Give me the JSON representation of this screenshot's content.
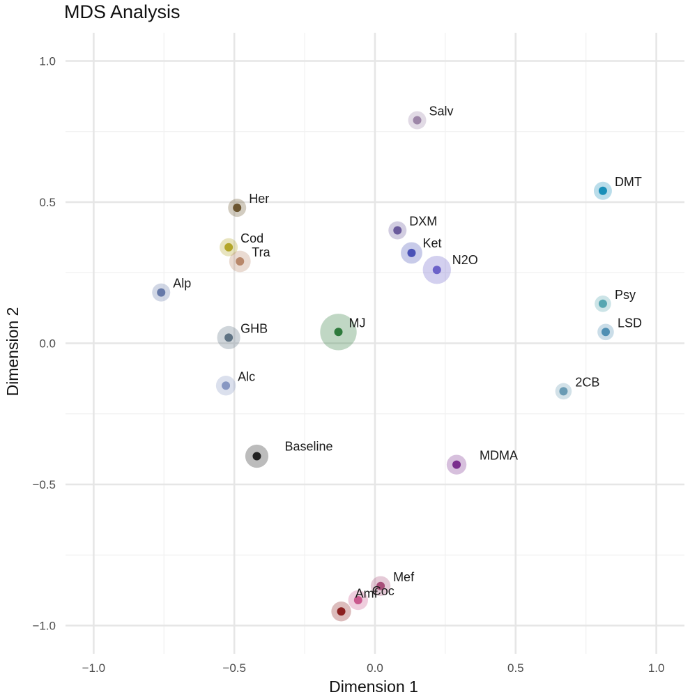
{
  "chart_data": {
    "type": "scatter",
    "title": "MDS Analysis",
    "xlabel": "Dimension 1",
    "ylabel": "Dimension 2",
    "xlim": [
      -1.1,
      1.1
    ],
    "ylim": [
      -1.1,
      1.1
    ],
    "x_ticks": [
      {
        "value": -1.0,
        "label": "−1.0"
      },
      {
        "value": -0.5,
        "label": "−0.5"
      },
      {
        "value": 0.0,
        "label": "0.0"
      },
      {
        "value": 0.5,
        "label": "0.5"
      },
      {
        "value": 1.0,
        "label": "1.0"
      }
    ],
    "y_ticks": [
      {
        "value": 1.0,
        "label": "1.0"
      },
      {
        "value": 0.5,
        "label": "0.5"
      },
      {
        "value": 0.0,
        "label": "0.0"
      },
      {
        "value": -0.5,
        "label": "−0.5"
      },
      {
        "value": -1.0,
        "label": "−1.0"
      }
    ],
    "grid": true,
    "legend": "none",
    "points": [
      {
        "label": "Salv",
        "x": 0.15,
        "y": 0.79,
        "size": 1.0,
        "color": "#9d86a8"
      },
      {
        "label": "DMT",
        "x": 0.81,
        "y": 0.54,
        "size": 1.0,
        "color": "#1a8fb8"
      },
      {
        "label": "Her",
        "x": -0.49,
        "y": 0.48,
        "size": 1.0,
        "color": "#6b5530"
      },
      {
        "label": "DXM",
        "x": 0.08,
        "y": 0.4,
        "size": 1.0,
        "color": "#6a5a9c"
      },
      {
        "label": "Cod",
        "x": -0.52,
        "y": 0.34,
        "size": 1.0,
        "color": "#b3a62a"
      },
      {
        "label": "Ket",
        "x": 0.13,
        "y": 0.32,
        "size": 1.2,
        "color": "#4a52b6"
      },
      {
        "label": "Tra",
        "x": -0.48,
        "y": 0.29,
        "size": 1.2,
        "color": "#b8876a"
      },
      {
        "label": "N2O",
        "x": 0.22,
        "y": 0.26,
        "size": 1.6,
        "color": "#6c62c9"
      },
      {
        "label": "Alp",
        "x": -0.76,
        "y": 0.18,
        "size": 1.0,
        "color": "#6679a8"
      },
      {
        "label": "Psy",
        "x": 0.81,
        "y": 0.14,
        "size": 0.9,
        "color": "#56a6b1"
      },
      {
        "label": "LSD",
        "x": 0.82,
        "y": 0.04,
        "size": 0.9,
        "color": "#4f8fb3"
      },
      {
        "label": "MJ",
        "x": -0.13,
        "y": 0.04,
        "size": 2.1,
        "color": "#2e7a3c"
      },
      {
        "label": "GHB",
        "x": -0.52,
        "y": 0.02,
        "size": 1.3,
        "color": "#5f7384"
      },
      {
        "label": "Alc",
        "x": -0.53,
        "y": -0.15,
        "size": 1.1,
        "color": "#8797c2"
      },
      {
        "label": "2CB",
        "x": 0.67,
        "y": -0.17,
        "size": 0.9,
        "color": "#6a9bb4"
      },
      {
        "label": "Baseline",
        "x": -0.42,
        "y": -0.4,
        "size": 1.3,
        "color": "#222222"
      },
      {
        "label": "MDMA",
        "x": 0.29,
        "y": -0.43,
        "size": 1.1,
        "color": "#7b2f8e"
      },
      {
        "label": "Mef",
        "x": 0.02,
        "y": -0.86,
        "size": 1.1,
        "color": "#a84e79"
      },
      {
        "label": "Coc",
        "x": -0.06,
        "y": -0.91,
        "size": 1.1,
        "color": "#c9588d"
      },
      {
        "label": "Amf",
        "x": -0.12,
        "y": -0.95,
        "size": 1.1,
        "color": "#8b2020"
      }
    ]
  }
}
